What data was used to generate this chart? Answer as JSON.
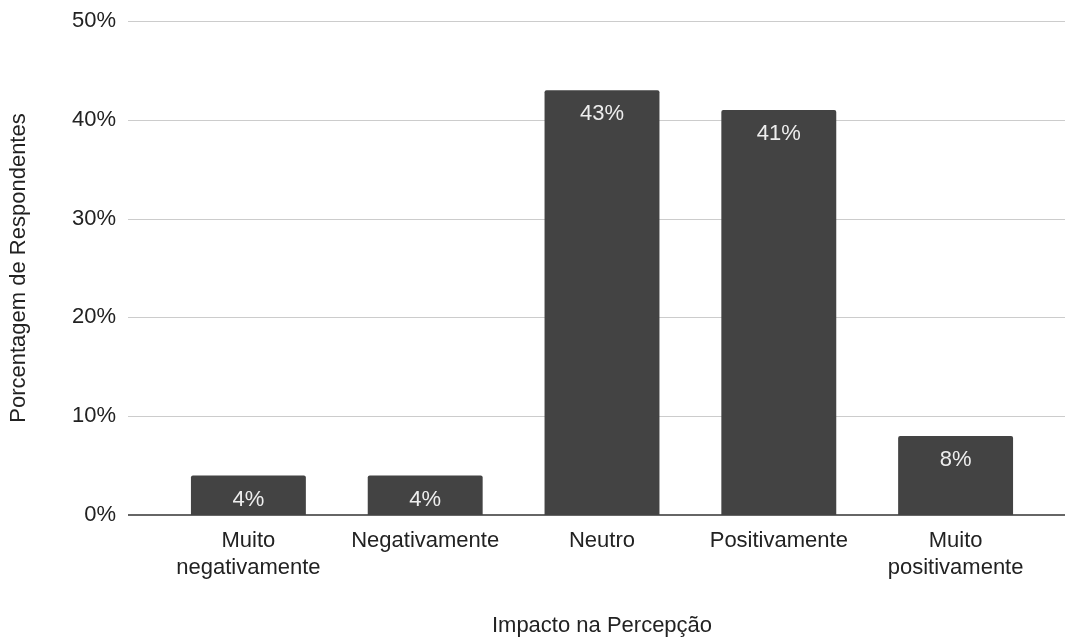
{
  "chart_data": {
    "type": "bar",
    "xlabel": "Impacto na Percepção",
    "ylabel": "Porcentagem de Respondentes",
    "categories": [
      "Muito negativamente",
      "Negativamente",
      "Neutro",
      "Positivamente",
      "Muito positivamente"
    ],
    "values": [
      4,
      4,
      43,
      41,
      8
    ],
    "value_labels": [
      "4%",
      "4%",
      "43%",
      "41%",
      "8%"
    ],
    "color": "#434343",
    "ylim": [
      0,
      50
    ],
    "yticks": [
      {
        "value": 0,
        "label": "0%"
      },
      {
        "value": 10,
        "label": "10%"
      },
      {
        "value": 20,
        "label": "20%"
      },
      {
        "value": 30,
        "label": "30%"
      },
      {
        "value": 40,
        "label": "40%"
      },
      {
        "value": 50,
        "label": "50%"
      }
    ],
    "grid": "y"
  }
}
